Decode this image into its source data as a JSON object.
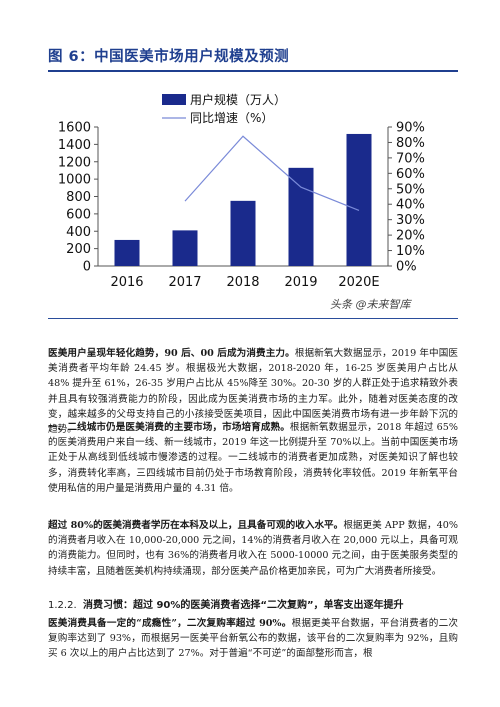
{
  "figure": {
    "title": "图 6：中国医美市场用户规模及预测",
    "watermark": "头条 @未来智库"
  },
  "chart_data": {
    "type": "bar",
    "categories": [
      "2016",
      "2017",
      "2018",
      "2019",
      "2020E"
    ],
    "series": [
      {
        "name": "用户规模（万人）",
        "type": "bar",
        "axis": "left",
        "values": [
          300,
          410,
          750,
          1130,
          1520
        ],
        "color": "#1a2a8c"
      },
      {
        "name": "同比增速（%）",
        "type": "line",
        "axis": "right",
        "values": [
          null,
          42,
          84,
          51,
          36
        ],
        "color": "#7a8ad8"
      }
    ],
    "left_axis": {
      "ticks": [
        "0",
        "200",
        "400",
        "600",
        "800",
        "1000",
        "1200",
        "1400",
        "1600"
      ],
      "ylim": [
        0,
        1600
      ]
    },
    "right_axis": {
      "ticks": [
        "0%",
        "10%",
        "20%",
        "30%",
        "40%",
        "50%",
        "60%",
        "70%",
        "80%",
        "90%"
      ],
      "ylim": [
        0,
        90
      ]
    },
    "legend_position": "top-left",
    "grid": false
  },
  "paragraphs": {
    "p1_bold": "医美用户呈现年轻化趋势，90 后、00 后成为消费主力。",
    "p1_text": "根据新氧大数据显示，2019 年中国医美消费者平均年龄 24.45 岁。根据极光大数据，2018-2020 年，16-25 岁医美用户占比从 48% 提升至 61%，26-35 岁用户占比从 45%降至 30%。20-30 岁的人群正处于追求精致外表并且具有较强消费能力的阶段，因此成为医美消费市场的主力军。此外，随着对医美态度的改变，越来越多的父母支持自己的小孩接受医美项目，因此中国医美消费市场有进一步年龄下沉的趋势。",
    "p2_bold": "一、二线城市仍是医美消费的主要市场，市场培育成熟。",
    "p2_text": "根据新氧数据显示，2018 年超过 65%的医美消费用户来自一线、新一线城市，2019 年这一比例提升至 70%以上。当前中国医美市场正处于从高线到低线城市慢渗透的过程。一二线城市的消费者更加成熟，对医美知识了解也较多，消费转化率高，三四线城市目前仍处于市场教育阶段，消费转化率较低。2019 年新氧平台使用私信的用户量是消费用户量的 4.31 倍。",
    "p3_bold": "超过 80%的医美消费者学历在本科及以上，且具备可观的收入水平。",
    "p3_text": "根据更美 APP 数据，40%的消费者月收入在 10,000-20,000 元之间，14%的消费者月收入在 20,000 元以上，具备可观的消费能力。但同时，也有 36%的消费者月收入在 5000-10000 元之间，由于医美服务类型的持续丰富，且随着医美机构持续涌现，部分医美产品价格更加亲民，可为广大消费者所接受。",
    "heading_num": "1.2.2.",
    "heading_bold": "消费习惯：超过 90%的医美消费者选择“二次复购”，单客支出逐年提升",
    "p4_bold": "医美消费具备一定的“成瘾性”，二次复购率超过 90%。",
    "p4_text": "根据更美平台数据，平台消费者的二次复购率达到了 93%，而根据另一医美平台新氧公布的数据，该平台的二次复购率为 92%，且购买 6 次以上的用户占比达到了 27%。对于普遍“不可逆”的面部整形而言，根"
  }
}
